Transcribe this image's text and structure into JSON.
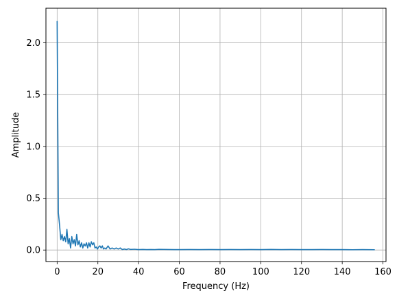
{
  "chart_data": {
    "type": "line",
    "title": "",
    "xlabel": "Frequency (Hz)",
    "ylabel": "Amplitude",
    "xlim": [
      -5.5,
      161.5
    ],
    "ylim": [
      -0.111,
      2.334
    ],
    "grid": true,
    "x_ticks": [
      0,
      20,
      40,
      60,
      80,
      100,
      120,
      140,
      160
    ],
    "y_ticks": [
      0.0,
      0.5,
      1.0,
      1.5,
      2.0
    ],
    "x_tick_labels": [
      "0",
      "20",
      "40",
      "60",
      "80",
      "100",
      "120",
      "140",
      "160"
    ],
    "y_tick_labels": [
      "0.0",
      "0.5",
      "1.0",
      "1.5",
      "2.0"
    ],
    "colors": {
      "series": "#1f77b4",
      "grid": "#b0b0b0",
      "frame": "#000000"
    },
    "series": [
      {
        "name": "",
        "x": [
          0,
          0.6,
          1.2,
          1.8,
          2.4,
          3.0,
          3.6,
          4.2,
          4.8,
          5.4,
          6.0,
          6.6,
          7.2,
          7.8,
          8.4,
          9.0,
          9.6,
          10.2,
          10.8,
          11.4,
          12.0,
          12.6,
          13.2,
          13.8,
          14.4,
          15.0,
          15.6,
          16.2,
          16.8,
          17.4,
          18.0,
          18.6,
          19.2,
          19.8,
          20.4,
          21.0,
          21.6,
          22.2,
          22.8,
          23.4,
          24.0,
          25.0,
          26.0,
          27.0,
          28.0,
          29.0,
          30.0,
          31.0,
          32.0,
          33.0,
          34.0,
          35.0,
          36.0,
          38.0,
          40.0,
          42.0,
          44.0,
          46.0,
          48.0,
          50.0,
          55.0,
          60.0,
          65.0,
          70.0,
          75.0,
          80.0,
          85.0,
          90.0,
          95.0,
          100.0,
          105.0,
          110.0,
          115.0,
          120.0,
          125.0,
          130.0,
          135.0,
          140.0,
          145.0,
          150.0,
          156.0
        ],
        "y": [
          2.21,
          0.36,
          0.24,
          0.1,
          0.15,
          0.09,
          0.13,
          0.08,
          0.2,
          0.06,
          0.11,
          0.02,
          0.13,
          0.06,
          0.1,
          0.04,
          0.15,
          0.05,
          0.09,
          0.03,
          0.07,
          0.02,
          0.06,
          0.04,
          0.07,
          0.02,
          0.07,
          0.03,
          0.08,
          0.05,
          0.07,
          0.02,
          0.03,
          0.01,
          0.03,
          0.04,
          0.02,
          0.04,
          0.01,
          0.02,
          0.01,
          0.04,
          0.01,
          0.02,
          0.01,
          0.02,
          0.01,
          0.02,
          0.005,
          0.01,
          0.005,
          0.012,
          0.006,
          0.008,
          0.004,
          0.006,
          0.004,
          0.005,
          0.004,
          0.007,
          0.005,
          0.004,
          0.005,
          0.004,
          0.005,
          0.004,
          0.005,
          0.004,
          0.005,
          0.004,
          0.006,
          0.004,
          0.005,
          0.004,
          0.004,
          0.005,
          0.004,
          0.004,
          0.003,
          0.004,
          0.003
        ]
      }
    ]
  }
}
